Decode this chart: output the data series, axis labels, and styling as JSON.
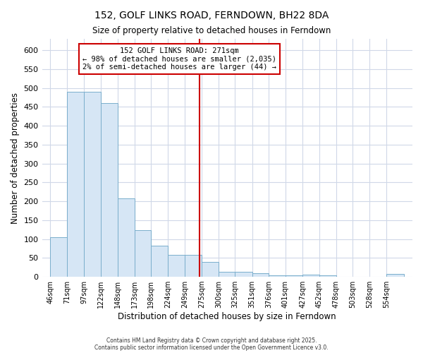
{
  "title": "152, GOLF LINKS ROAD, FERNDOWN, BH22 8DA",
  "subtitle": "Size of property relative to detached houses in Ferndown",
  "xlabel": "Distribution of detached houses by size in Ferndown",
  "ylabel": "Number of detached properties",
  "bar_color": "#d6e6f5",
  "bar_edge_color": "#7aaecc",
  "background_color": "#ffffff",
  "grid_color": "#d0d8e8",
  "vline_x": 271,
  "vline_color": "#cc0000",
  "annotation_title": "152 GOLF LINKS ROAD: 271sqm",
  "annotation_line1": "← 98% of detached houses are smaller (2,035)",
  "annotation_line2": "2% of semi-detached houses are larger (44) →",
  "annotation_box_color": "white",
  "annotation_edge_color": "#cc0000",
  "bins": [
    46,
    71,
    97,
    122,
    148,
    173,
    198,
    224,
    249,
    275,
    300,
    325,
    351,
    376,
    401,
    427,
    452,
    478,
    503,
    528,
    554
  ],
  "counts": [
    105,
    490,
    490,
    460,
    208,
    123,
    83,
    58,
    58,
    40,
    13,
    13,
    10,
    3,
    3,
    5,
    3,
    0,
    0,
    0,
    7
  ],
  "ylim": [
    0,
    630
  ],
  "yticks": [
    0,
    50,
    100,
    150,
    200,
    250,
    300,
    350,
    400,
    450,
    500,
    550,
    600
  ],
  "footer_line1": "Contains HM Land Registry data © Crown copyright and database right 2025.",
  "footer_line2": "Contains public sector information licensed under the Open Government Licence v3.0."
}
